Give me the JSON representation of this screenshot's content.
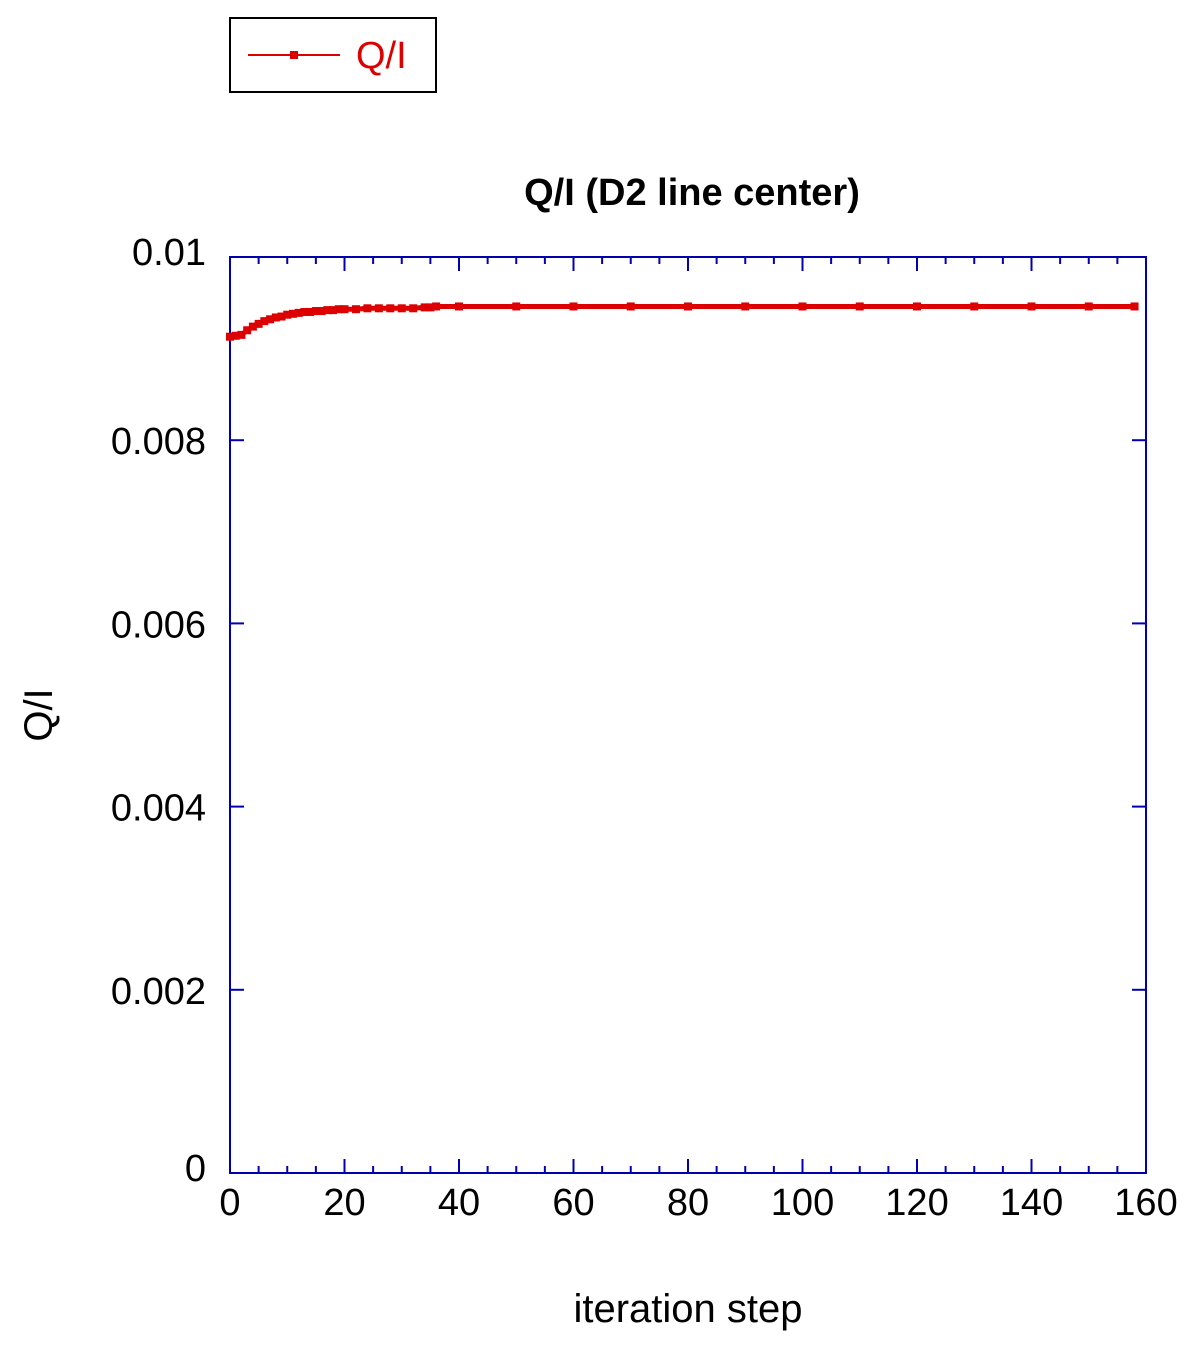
{
  "chart_data": {
    "type": "line",
    "title": "Q/I (D2 line center)",
    "xlabel": "iteration step",
    "ylabel": "Q/I",
    "xlim": [
      0,
      160
    ],
    "ylim": [
      0,
      0.01
    ],
    "x_ticks": [
      "0",
      "20",
      "40",
      "60",
      "80",
      "100",
      "120",
      "140",
      "160"
    ],
    "y_ticks": [
      "0",
      "0.002",
      "0.004",
      "0.006",
      "0.008",
      "0.01"
    ],
    "x_tick_values": [
      0,
      20,
      40,
      60,
      80,
      100,
      120,
      140,
      160
    ],
    "y_tick_values": [
      0,
      0.002,
      0.004,
      0.006,
      0.008,
      0.01
    ],
    "grid": false,
    "legend_position": "top-left, outside plot",
    "series": [
      {
        "name": "Q/I",
        "color": "#dd0000",
        "marker": "square",
        "x": [
          0,
          1,
          2,
          3,
          4,
          5,
          6,
          7,
          8,
          9,
          10,
          11,
          12,
          13,
          14,
          15,
          16,
          17,
          18,
          19,
          20,
          22,
          24,
          26,
          28,
          30,
          32,
          34,
          35,
          36,
          40,
          50,
          60,
          70,
          80,
          90,
          100,
          110,
          120,
          130,
          140,
          150,
          158
        ],
        "values": [
          0.00913,
          0.00914,
          0.00915,
          0.0092,
          0.00924,
          0.00927,
          0.0093,
          0.00932,
          0.00934,
          0.00935,
          0.00937,
          0.00938,
          0.00939,
          0.0094,
          0.0094,
          0.00941,
          0.00941,
          0.00942,
          0.00942,
          0.00943,
          0.00943,
          0.00943,
          0.00944,
          0.00944,
          0.00944,
          0.00944,
          0.00944,
          0.00945,
          0.00945,
          0.00946,
          0.00946,
          0.00946,
          0.00946,
          0.00946,
          0.00946,
          0.00946,
          0.00946,
          0.00946,
          0.00946,
          0.00946,
          0.00946,
          0.00946,
          0.00946
        ]
      }
    ]
  },
  "colors": {
    "axis": "#0000b0",
    "series": "#dd0000",
    "legend_border": "#000000"
  }
}
